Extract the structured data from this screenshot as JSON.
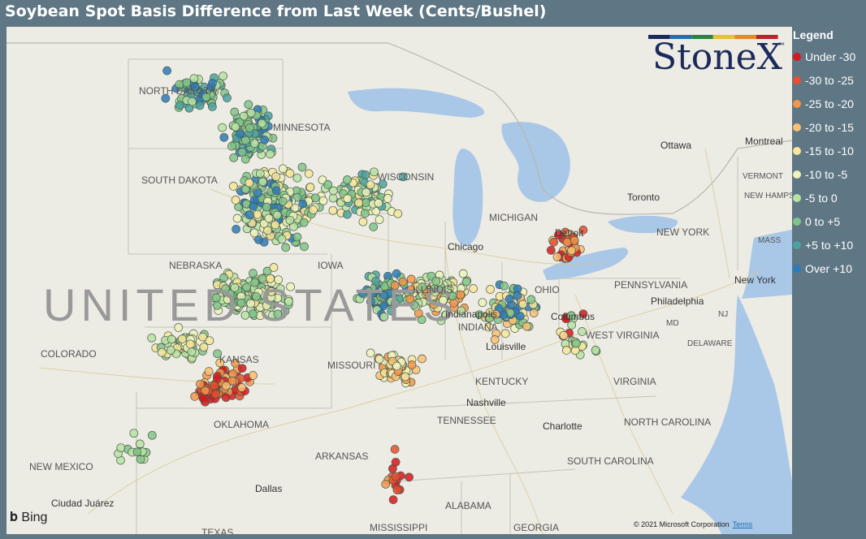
{
  "title": "Soybean Spot Basis Difference from Last Week (Cents/Bushel)",
  "logo": {
    "text": "StoneX",
    "tm": "™",
    "bar_colors": [
      "#1b2a5a",
      "#2d6ca8",
      "#2f7f49",
      "#e4c23c",
      "#e08a2e",
      "#b3262b"
    ]
  },
  "legend": {
    "title": "Legend",
    "items": [
      {
        "label": "Under -30",
        "color": "#d7191c"
      },
      {
        "label": "-30 to -25",
        "color": "#e8502e"
      },
      {
        "label": "-25 to -20",
        "color": "#f3954a"
      },
      {
        "label": "-20 to -15",
        "color": "#fbbf72"
      },
      {
        "label": "-15 to -10",
        "color": "#f8e69a"
      },
      {
        "label": "-10 to -5",
        "color": "#eef3ba"
      },
      {
        "label": "-5 to 0",
        "color": "#b9e3a3"
      },
      {
        "label": "0 to +5",
        "color": "#82c58a"
      },
      {
        "label": "+5 to +10",
        "color": "#4ba3a0"
      },
      {
        "label": "Over +10",
        "color": "#2b7bba"
      }
    ]
  },
  "map": {
    "country_label": "UNITED STATES",
    "state_labels": [
      "NORTH DAKOTA",
      "MINNESOTA",
      "SOUTH DAKOTA",
      "WISCONSIN",
      "MICHIGAN",
      "NEBRASKA",
      "IOWA",
      "ILLINOIS",
      "INDIANA",
      "OHIO",
      "PENNSYLVANIA",
      "NEW YORK",
      "VERMONT",
      "NEW HAMPSH",
      "MASS",
      "COLORADO",
      "KANSAS",
      "MISSOURI",
      "KENTUCKY",
      "WEST VIRGINIA",
      "VIRGINIA",
      "MD",
      "NJ",
      "DELAWARE",
      "TENNESSEE",
      "NORTH CAROLINA",
      "SOUTH CAROLINA",
      "OKLAHOMA",
      "ARKANSAS",
      "NEW MEXICO",
      "ALABAMA",
      "GEORGIA",
      "MISSISSIPPI",
      "TEXAS"
    ],
    "city_labels": [
      "Ottawa",
      "Montreal",
      "Toronto",
      "Detroit",
      "Chicago",
      "Columbus",
      "Philadelphia",
      "New York",
      "Louisville",
      "Nashville",
      "Charlotte",
      "Dallas",
      "Ciudad Juárez",
      "Indianapolis"
    ],
    "attribution": {
      "bing": "Bing",
      "copyright": "© 2021 Microsoft Corporation",
      "terms": "Terms"
    }
  }
}
